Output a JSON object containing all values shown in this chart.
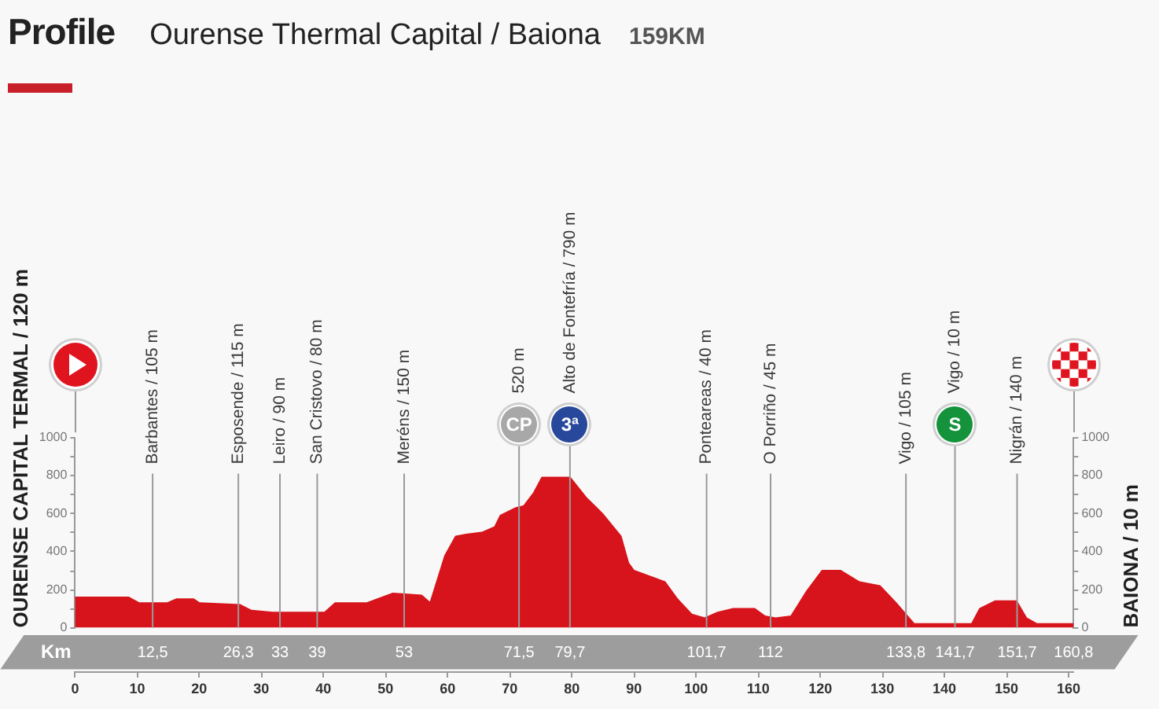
{
  "chart_data": {
    "type": "area",
    "title": "Profile",
    "subtitle": "Ourense Thermal Capital / Baiona",
    "annotations": [
      "159KM",
      "OURENSE CAPITAL TERMAL / 120 m",
      "BAIONA / 10 m",
      {
        "text": "CP",
        "x": 71.5
      },
      {
        "text": "3ª",
        "x": 79.7
      },
      {
        "text": "S",
        "x": 141.7
      }
    ],
    "x": [
      0,
      8.6,
      10.3,
      14.9,
      16.3,
      19.1,
      20,
      26.6,
      28.4,
      31.8,
      40.2,
      41.9,
      47,
      48.7,
      51.2,
      55.8,
      57.2,
      59.6,
      61.3,
      63,
      65.5,
      67.6,
      68.5,
      71,
      72.3,
      73.9,
      75.2,
      79.7,
      82.4,
      84.9,
      87.9,
      89.1,
      90,
      92.5,
      95,
      97,
      99.3,
      101.4,
      103.5,
      106,
      109.4,
      111.1,
      112.8,
      115.3,
      117.8,
      120.3,
      123.3,
      126.3,
      129.6,
      132.2,
      135.1,
      144.4,
      145.7,
      148.2,
      151.6,
      153.2,
      154.9,
      160.8
    ],
    "values": [
      160,
      160,
      130,
      130,
      150,
      150,
      130,
      120,
      90,
      80,
      80,
      130,
      130,
      150,
      180,
      170,
      130,
      380,
      480,
      490,
      500,
      530,
      590,
      630,
      640,
      710,
      790,
      790,
      680,
      600,
      480,
      340,
      300,
      270,
      240,
      150,
      70,
      50,
      80,
      100,
      100,
      60,
      50,
      60,
      190,
      300,
      300,
      240,
      220,
      130,
      20,
      20,
      100,
      140,
      140,
      50,
      20,
      20
    ],
    "color": "#d7141c",
    "xlim": [
      0,
      160.8
    ],
    "xticks": [
      0,
      10,
      20,
      30,
      40,
      50,
      60,
      70,
      80,
      90,
      100,
      110,
      120,
      130,
      140,
      150,
      160
    ],
    "x2label": "Km",
    "x2lim": [
      0,
      160.8
    ],
    "x2ticks": [
      {
        "value": 12.5,
        "label": "12,5"
      },
      {
        "value": 26.3,
        "label": "26,3"
      },
      33,
      39,
      53,
      {
        "value": 71.5,
        "label": "71,5"
      },
      {
        "value": 79.7,
        "label": "79,7"
      },
      {
        "value": 101.7,
        "label": "101,7"
      },
      112,
      {
        "value": 133.8,
        "label": "133,8"
      },
      {
        "value": 141.7,
        "label": "141,7"
      },
      {
        "value": 151.7,
        "label": "151,7"
      },
      {
        "value": 160.8,
        "label": "160,8"
      }
    ],
    "ylim": [
      0,
      1000
    ],
    "yticks": [
      0,
      {
        "value": 100,
        "label": null
      },
      200,
      {
        "value": 300,
        "label": null
      },
      400,
      {
        "value": 500,
        "label": null
      },
      600,
      {
        "value": 700,
        "label": null
      },
      800,
      {
        "value": 900,
        "label": null
      },
      1000
    ],
    "y2lim": [
      0,
      1000
    ],
    "y2ticks": [
      0,
      {
        "value": 100,
        "label": null
      },
      200,
      {
        "value": 300,
        "label": null
      },
      400,
      {
        "value": 500,
        "label": null
      },
      600,
      {
        "value": 700,
        "label": null
      },
      800,
      {
        "value": 900,
        "label": null
      },
      1000
    ],
    "ref_lines": [
      {
        "axis": "x",
        "value": 12.5,
        "label": "Barbantes / 105 m"
      },
      {
        "axis": "x",
        "value": 26.3,
        "label": "Esposende / 115 m"
      },
      {
        "axis": "x",
        "value": 33,
        "label": "Leiro / 90 m"
      },
      {
        "axis": "x",
        "value": 39,
        "label": "San Cristovo / 80 m"
      },
      {
        "axis": "x",
        "value": 53,
        "label": "Meréns / 150 m"
      },
      {
        "axis": "x",
        "value": 71.5,
        "label": "520 m"
      },
      {
        "axis": "x",
        "value": 79.7,
        "label": "Alto de Fontefría / 790 m"
      },
      {
        "axis": "x",
        "value": 101.7,
        "label": "Ponteareas / 40 m"
      },
      {
        "axis": "x",
        "value": 112,
        "label": "O Porriño / 45 m"
      },
      {
        "axis": "x",
        "value": 133.8,
        "label": "Vigo / 105 m"
      },
      {
        "axis": "x",
        "value": 141.7,
        "label": "Vigo / 10 m"
      },
      {
        "axis": "x",
        "value": 151.7,
        "label": "Nigrán / 140 m"
      }
    ]
  }
}
